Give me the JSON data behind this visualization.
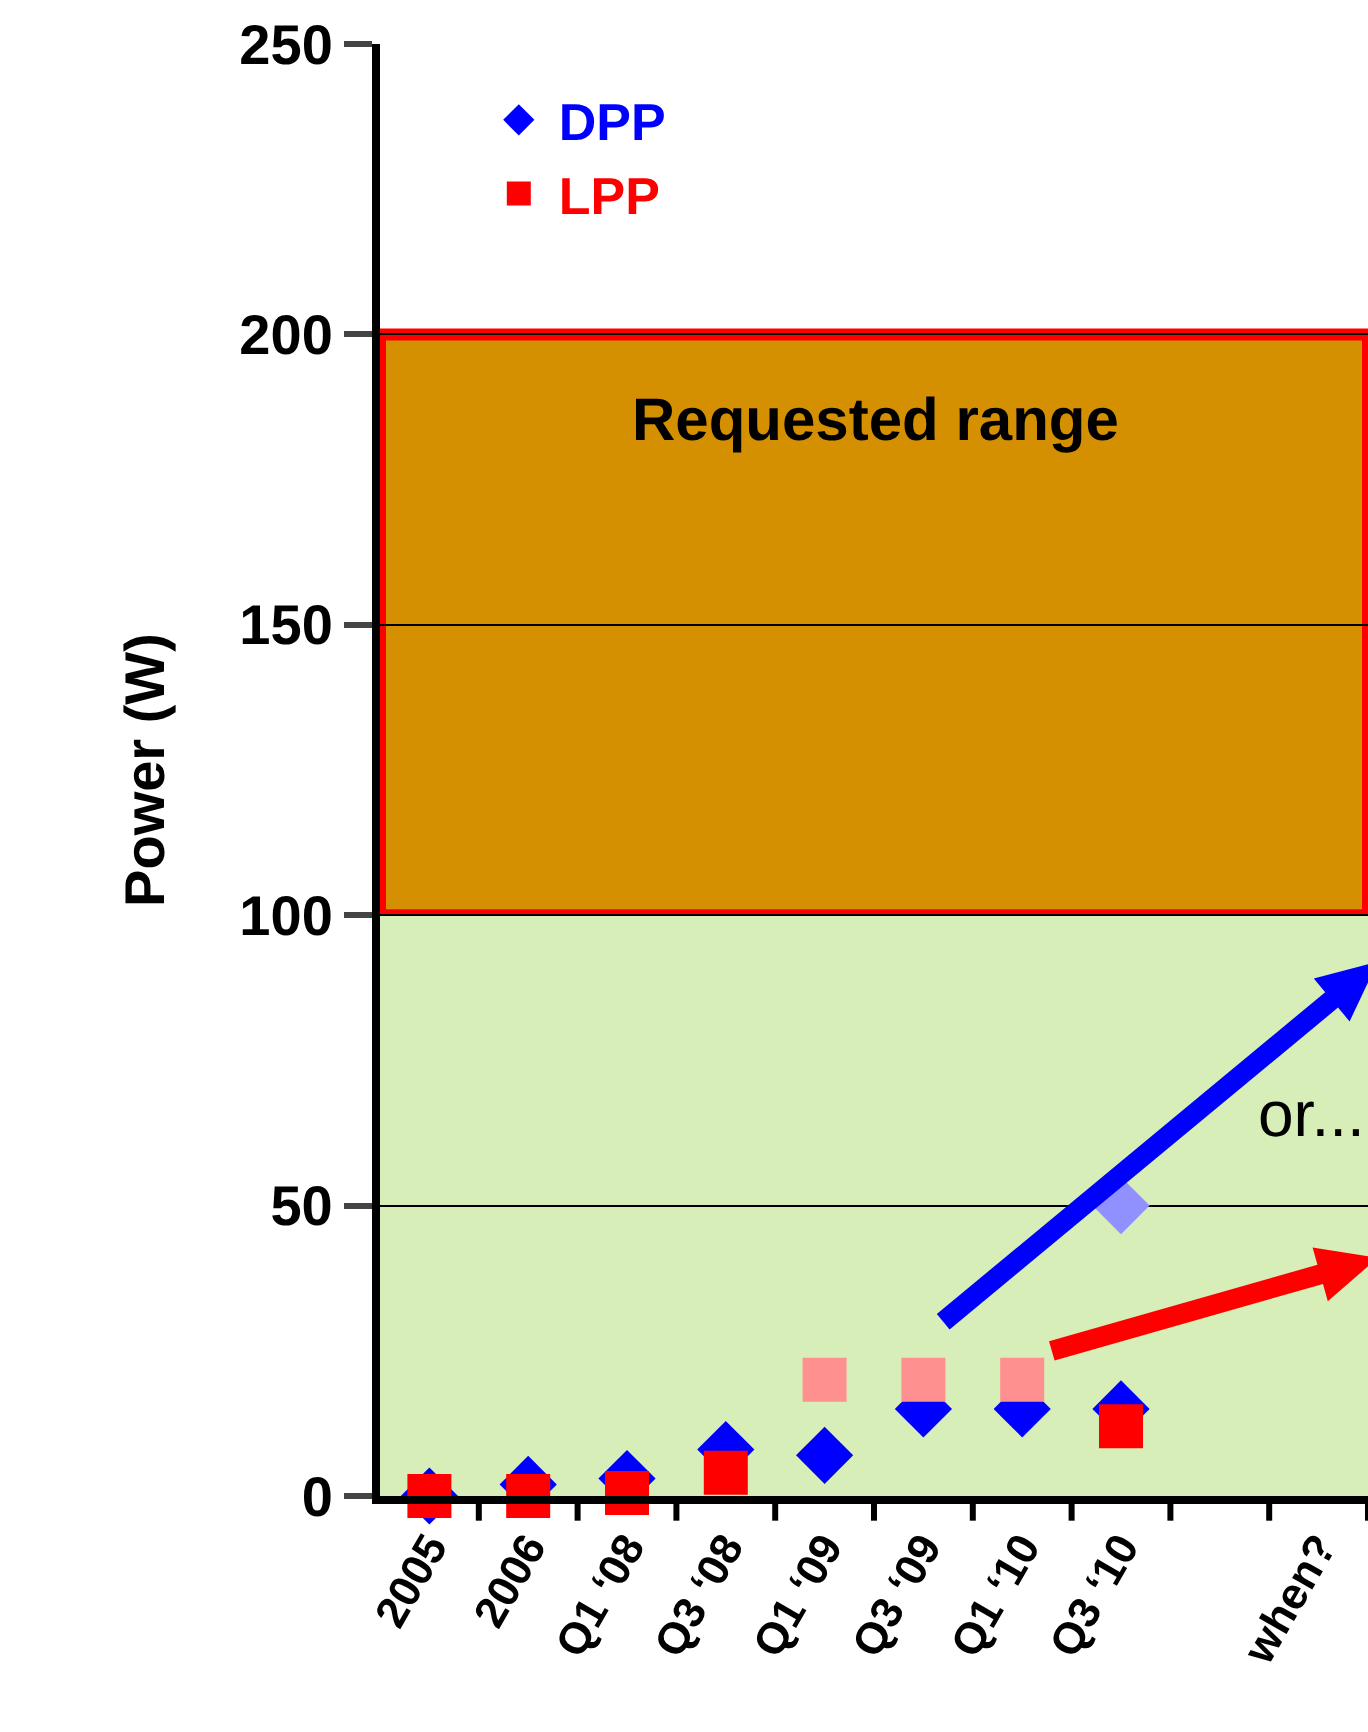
{
  "chart_data": {
    "type": "scatter",
    "ylabel": "Power (W)",
    "categories": [
      "2005",
      "2006",
      "Q1 ‘08",
      "Q3 ‘08",
      "Q1 ‘09",
      "Q3 ‘09",
      "Q1 ‘10",
      "Q3 ‘10",
      null,
      "when?"
    ],
    "series": [
      {
        "name": "DPP",
        "color": "#0000ff",
        "marker": "diamond",
        "values": [
          0,
          2,
          3,
          8,
          7,
          15,
          15,
          15,
          null,
          null
        ]
      },
      {
        "name": "LPP",
        "color": "#ff0000",
        "marker": "square",
        "values": [
          0,
          0,
          0.5,
          4,
          null,
          null,
          null,
          12,
          null,
          null
        ]
      },
      {
        "color": "#9090ff",
        "marker": "diamond",
        "values": [
          null,
          null,
          null,
          null,
          null,
          null,
          null,
          50,
          null,
          null
        ]
      },
      {
        "color": "#ff9090",
        "marker": "square",
        "values": [
          null,
          null,
          null,
          null,
          20,
          20,
          20,
          null,
          null,
          null
        ]
      }
    ],
    "ylim": [
      0,
      250
    ],
    "yticks": [
      0,
      50,
      100,
      150,
      200,
      250
    ],
    "grid": "y",
    "legend": "top left",
    "bands": [
      {
        "axis": "y",
        "from": 100,
        "to": 200,
        "label": "Requested range",
        "color": "#d49000"
      },
      {
        "axis": "y",
        "from": 0,
        "to": 100,
        "color": "#d8eeb8"
      }
    ],
    "annotations": [
      "or..."
    ]
  }
}
